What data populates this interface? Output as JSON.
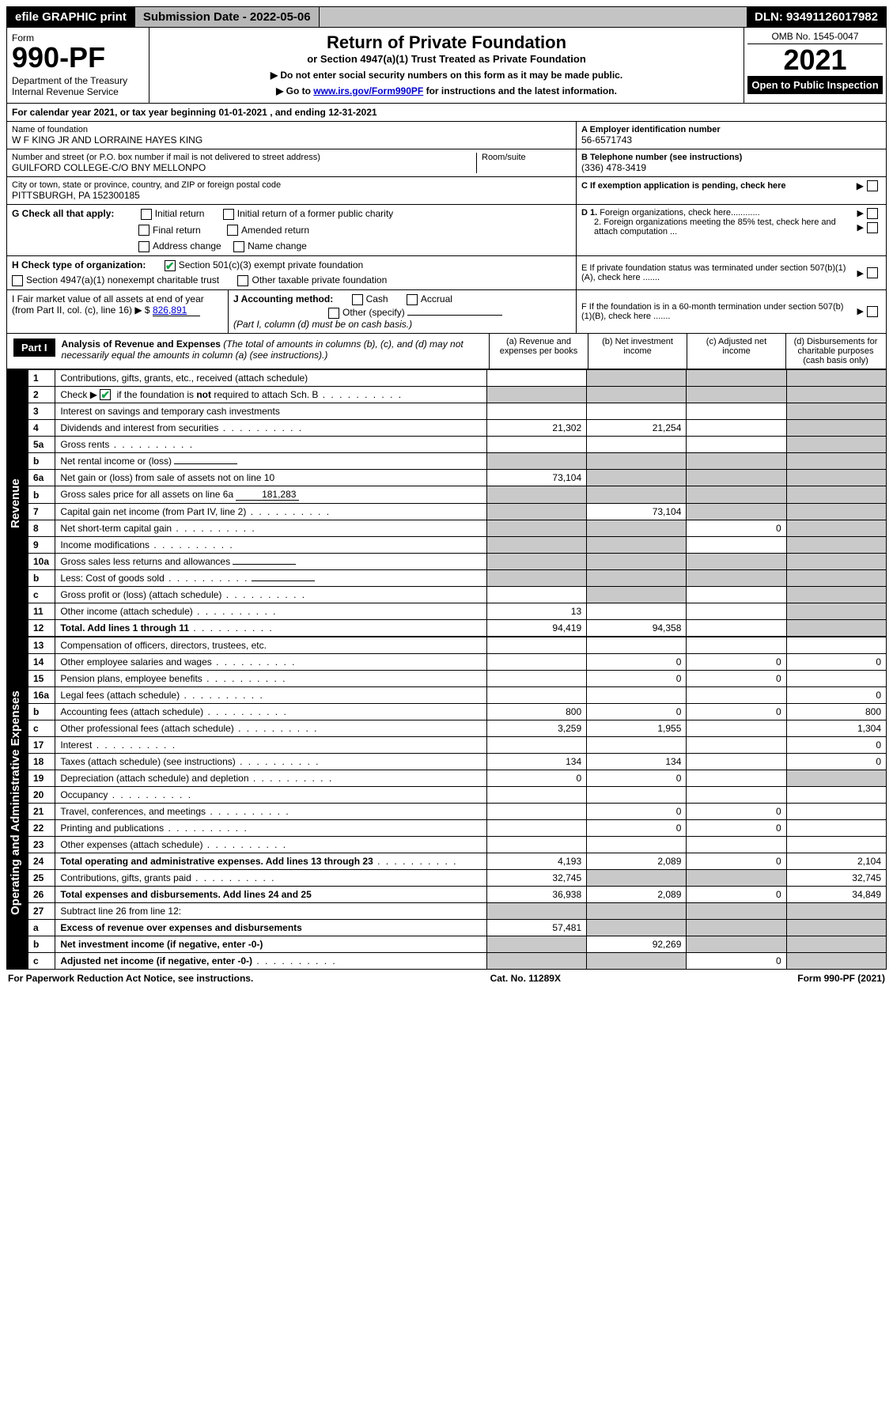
{
  "topbar": {
    "efile": "efile GRAPHIC print",
    "submission_label": "Submission Date - 2022-05-06",
    "dln": "DLN: 93491126017982"
  },
  "header": {
    "form_word": "Form",
    "form_no": "990-PF",
    "dept": "Department of the Treasury\nInternal Revenue Service",
    "title1": "Return of Private Foundation",
    "title2": "or Section 4947(a)(1) Trust Treated as Private Foundation",
    "note1": "▶ Do not enter social security numbers on this form as it may be made public.",
    "note2_pre": "▶ Go to ",
    "note2_link": "www.irs.gov/Form990PF",
    "note2_post": " for instructions and the latest information.",
    "omb": "OMB No. 1545-0047",
    "year": "2021",
    "open": "Open to Public Inspection"
  },
  "cal": {
    "line_pre": "For calendar year 2021, or tax year beginning ",
    "begin": "01-01-2021",
    "mid": " , and ending ",
    "end": "12-31-2021"
  },
  "id": {
    "name_label": "Name of foundation",
    "name": "W F KING JR AND LORRAINE HAYES KING",
    "addr_label": "Number and street (or P.O. box number if mail is not delivered to street address)",
    "addr": "GUILFORD COLLEGE-C/O BNY MELLONPO",
    "room_label": "Room/suite",
    "city_label": "City or town, state or province, country, and ZIP or foreign postal code",
    "city": "PITTSBURGH, PA  152300185",
    "a_label": "A Employer identification number",
    "a_val": "56-6571743",
    "b_label": "B Telephone number (see instructions)",
    "b_val": "(336) 478-3419",
    "c_label": "C If exemption application is pending, check here",
    "d1": "D 1. Foreign organizations, check here............",
    "d2": "2. Foreign organizations meeting the 85% test, check here and attach computation ...",
    "e": "E  If private foundation status was terminated under section 507(b)(1)(A), check here .......",
    "f": "F  If the foundation is in a 60-month termination under section 507(b)(1)(B), check here .......",
    "g_label": "G Check all that apply:",
    "g_opts": [
      "Initial return",
      "Initial return of a former public charity",
      "Final return",
      "Amended return",
      "Address change",
      "Name change"
    ],
    "h_label": "H Check type of organization:",
    "h1": "Section 501(c)(3) exempt private foundation",
    "h2": "Section 4947(a)(1) nonexempt charitable trust",
    "h3": "Other taxable private foundation",
    "i_label": "I Fair market value of all assets at end of year (from Part II, col. (c), line 16) ▶ $",
    "i_val": "826,891",
    "j_label": "J Accounting method:",
    "j_cash": "Cash",
    "j_accrual": "Accrual",
    "j_other": "Other (specify)",
    "j_note": "(Part I, column (d) must be on cash basis.)"
  },
  "part1": {
    "tag": "Part I",
    "title": "Analysis of Revenue and Expenses",
    "title_note": " (The total of amounts in columns (b), (c), and (d) may not necessarily equal the amounts in column (a) (see instructions).)",
    "col_a": "(a)  Revenue and expenses per books",
    "col_b": "(b)  Net investment income",
    "col_c": "(c)  Adjusted net income",
    "col_d": "(d)  Disbursements for charitable purposes (cash basis only)"
  },
  "sections": {
    "revenue": "Revenue",
    "opex": "Operating and Administrative Expenses"
  },
  "rows": [
    {
      "n": "1",
      "lbl": "Contributions, gifts, grants, etc., received (attach schedule)",
      "a": "",
      "b": "grey",
      "c": "grey",
      "d": "grey"
    },
    {
      "n": "2",
      "lbl": "Check ▶ [✔] if the foundation is not required to attach Sch. B",
      "dots": true,
      "a": "grey",
      "b": "grey",
      "c": "grey",
      "d": "grey"
    },
    {
      "n": "3",
      "lbl": "Interest on savings and temporary cash investments",
      "a": "",
      "b": "",
      "c": "",
      "d": "grey"
    },
    {
      "n": "4",
      "lbl": "Dividends and interest from securities",
      "dots": true,
      "a": "21,302",
      "b": "21,254",
      "c": "",
      "d": "grey"
    },
    {
      "n": "5a",
      "lbl": "Gross rents",
      "dots": true,
      "a": "",
      "b": "",
      "c": "",
      "d": "grey"
    },
    {
      "n": "b",
      "lbl": "Net rental income or (loss)",
      "inline": "",
      "a": "grey",
      "b": "grey",
      "c": "grey",
      "d": "grey"
    },
    {
      "n": "6a",
      "lbl": "Net gain or (loss) from sale of assets not on line 10",
      "a": "73,104",
      "b": "grey",
      "c": "grey",
      "d": "grey"
    },
    {
      "n": "b",
      "lbl": "Gross sales price for all assets on line 6a",
      "inline": "181,283",
      "a": "grey",
      "b": "grey",
      "c": "grey",
      "d": "grey"
    },
    {
      "n": "7",
      "lbl": "Capital gain net income (from Part IV, line 2)",
      "dots": true,
      "a": "grey",
      "b": "73,104",
      "c": "grey",
      "d": "grey"
    },
    {
      "n": "8",
      "lbl": "Net short-term capital gain",
      "dots": true,
      "a": "grey",
      "b": "grey",
      "c": "0",
      "d": "grey"
    },
    {
      "n": "9",
      "lbl": "Income modifications",
      "dots": true,
      "a": "grey",
      "b": "grey",
      "c": "",
      "d": "grey"
    },
    {
      "n": "10a",
      "lbl": "Gross sales less returns and allowances",
      "inline": "",
      "a": "grey",
      "b": "grey",
      "c": "grey",
      "d": "grey"
    },
    {
      "n": "b",
      "lbl": "Less: Cost of goods sold",
      "dots": true,
      "inline": "",
      "a": "grey",
      "b": "grey",
      "c": "grey",
      "d": "grey"
    },
    {
      "n": "c",
      "lbl": "Gross profit or (loss) (attach schedule)",
      "dots": true,
      "a": "",
      "b": "grey",
      "c": "",
      "d": "grey"
    },
    {
      "n": "11",
      "lbl": "Other income (attach schedule)",
      "dots": true,
      "a": "13",
      "b": "",
      "c": "",
      "d": "grey"
    },
    {
      "n": "12",
      "lbl": "Total. Add lines 1 through 11",
      "dots": true,
      "bold": true,
      "a": "94,419",
      "b": "94,358",
      "c": "",
      "d": "grey"
    }
  ],
  "oprows": [
    {
      "n": "13",
      "lbl": "Compensation of officers, directors, trustees, etc.",
      "a": "",
      "b": "",
      "c": "",
      "d": ""
    },
    {
      "n": "14",
      "lbl": "Other employee salaries and wages",
      "dots": true,
      "a": "",
      "b": "0",
      "c": "0",
      "d": "0"
    },
    {
      "n": "15",
      "lbl": "Pension plans, employee benefits",
      "dots": true,
      "a": "",
      "b": "0",
      "c": "0",
      "d": ""
    },
    {
      "n": "16a",
      "lbl": "Legal fees (attach schedule)",
      "dots": true,
      "a": "",
      "b": "",
      "c": "",
      "d": "0"
    },
    {
      "n": "b",
      "lbl": "Accounting fees (attach schedule)",
      "dots": true,
      "a": "800",
      "b": "0",
      "c": "0",
      "d": "800"
    },
    {
      "n": "c",
      "lbl": "Other professional fees (attach schedule)",
      "dots": true,
      "a": "3,259",
      "b": "1,955",
      "c": "",
      "d": "1,304"
    },
    {
      "n": "17",
      "lbl": "Interest",
      "dots": true,
      "a": "",
      "b": "",
      "c": "",
      "d": "0"
    },
    {
      "n": "18",
      "lbl": "Taxes (attach schedule) (see instructions)",
      "dots": true,
      "a": "134",
      "b": "134",
      "c": "",
      "d": "0"
    },
    {
      "n": "19",
      "lbl": "Depreciation (attach schedule) and depletion",
      "dots": true,
      "a": "0",
      "b": "0",
      "c": "",
      "d": "grey"
    },
    {
      "n": "20",
      "lbl": "Occupancy",
      "dots": true,
      "a": "",
      "b": "",
      "c": "",
      "d": ""
    },
    {
      "n": "21",
      "lbl": "Travel, conferences, and meetings",
      "dots": true,
      "a": "",
      "b": "0",
      "c": "0",
      "d": ""
    },
    {
      "n": "22",
      "lbl": "Printing and publications",
      "dots": true,
      "a": "",
      "b": "0",
      "c": "0",
      "d": ""
    },
    {
      "n": "23",
      "lbl": "Other expenses (attach schedule)",
      "dots": true,
      "a": "",
      "b": "",
      "c": "",
      "d": ""
    },
    {
      "n": "24",
      "lbl": "Total operating and administrative expenses. Add lines 13 through 23",
      "dots": true,
      "bold": true,
      "a": "4,193",
      "b": "2,089",
      "c": "0",
      "d": "2,104"
    },
    {
      "n": "25",
      "lbl": "Contributions, gifts, grants paid",
      "dots": true,
      "a": "32,745",
      "b": "grey",
      "c": "grey",
      "d": "32,745"
    },
    {
      "n": "26",
      "lbl": "Total expenses and disbursements. Add lines 24 and 25",
      "bold": true,
      "a": "36,938",
      "b": "2,089",
      "c": "0",
      "d": "34,849"
    },
    {
      "n": "27",
      "lbl": "Subtract line 26 from line 12:",
      "a": "grey",
      "b": "grey",
      "c": "grey",
      "d": "grey"
    },
    {
      "n": "a",
      "lbl": "Excess of revenue over expenses and disbursements",
      "bold": true,
      "a": "57,481",
      "b": "grey",
      "c": "grey",
      "d": "grey"
    },
    {
      "n": "b",
      "lbl": "Net investment income (if negative, enter -0-)",
      "bold": true,
      "a": "grey",
      "b": "92,269",
      "c": "grey",
      "d": "grey"
    },
    {
      "n": "c",
      "lbl": "Adjusted net income (if negative, enter -0-)",
      "dots": true,
      "bold": true,
      "a": "grey",
      "b": "grey",
      "c": "0",
      "d": "grey"
    }
  ],
  "footer": {
    "left": "For Paperwork Reduction Act Notice, see instructions.",
    "mid": "Cat. No. 11289X",
    "right": "Form 990-PF (2021)"
  }
}
